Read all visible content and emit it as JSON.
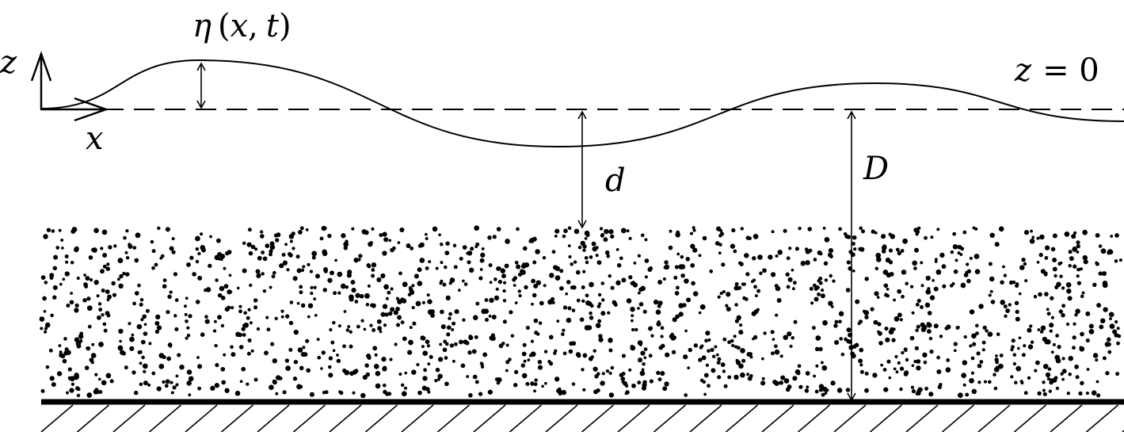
{
  "labels": {
    "eta_sym": "η",
    "eta_open": "(",
    "eta_x": "x",
    "eta_comma": ",",
    "eta_t": "t",
    "eta_close": ")",
    "z_axis": "z",
    "x_axis": "x",
    "z_eq_lhs": "z",
    "z_eq_rhs": "= 0",
    "d": "d",
    "D": "D"
  },
  "colors": {
    "ink": "#000000",
    "background": "#ffffff"
  },
  "icons": {
    "axes": "coordinate-axes-icon",
    "bed": "hatched-seabed-icon",
    "sediment": "dotted-sediment-layer"
  }
}
